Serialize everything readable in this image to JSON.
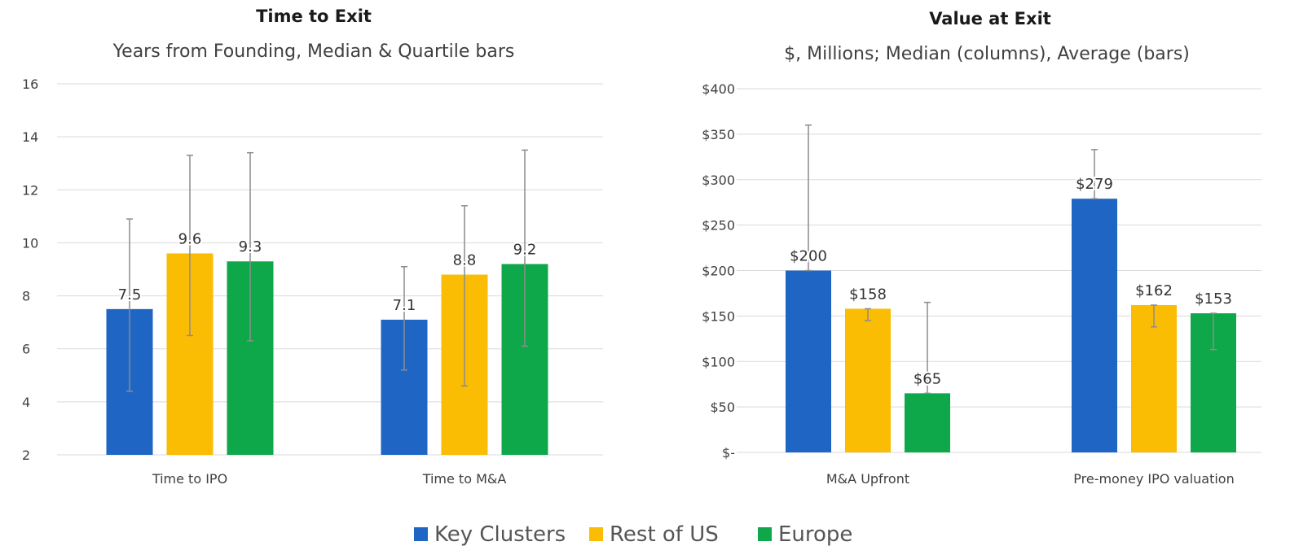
{
  "colors": {
    "key_clusters": "#1f65c4",
    "rest_of_us": "#fbbc04",
    "europe": "#0ea84a",
    "grid": "#d9d9d9",
    "axis_text": "#404040",
    "title_text": "#1a1a1a",
    "error_bar": "#8c8c8c"
  },
  "legend": {
    "position": "bottom-center",
    "items": [
      {
        "label": "Key Clusters",
        "color": "#1f65c4"
      },
      {
        "label": "Rest of US",
        "color": "#fbbc04"
      },
      {
        "label": "Europe",
        "color": "#0ea84a"
      }
    ]
  },
  "chart_data": [
    {
      "type": "bar",
      "title": "Time to Exit",
      "subtitle": "Years from Founding, Median & Quartile bars",
      "xlabel": "",
      "ylabel": "",
      "ylim": [
        2,
        16
      ],
      "yticks": [
        2,
        4,
        6,
        8,
        10,
        12,
        14,
        16
      ],
      "ytick_labels": [
        "2",
        "4",
        "6",
        "8",
        "10",
        "12",
        "14",
        "16"
      ],
      "grid": true,
      "categories": [
        "Time to IPO",
        "Time to M&A"
      ],
      "series": [
        {
          "name": "Key Clusters",
          "color": "#1f65c4",
          "values": [
            7.5,
            7.1
          ],
          "labels": [
            "7.5",
            "7.1"
          ],
          "err_low": [
            4.4,
            5.2
          ],
          "err_high": [
            10.9,
            9.1
          ]
        },
        {
          "name": "Rest of US",
          "color": "#fbbc04",
          "values": [
            9.6,
            8.8
          ],
          "labels": [
            "9.6",
            "8.8"
          ],
          "err_low": [
            6.5,
            4.6
          ],
          "err_high": [
            13.3,
            11.4
          ]
        },
        {
          "name": "Europe",
          "color": "#0ea84a",
          "values": [
            9.3,
            9.2
          ],
          "labels": [
            "9.3",
            "9.2"
          ],
          "err_low": [
            6.3,
            6.1
          ],
          "err_high": [
            13.4,
            13.5
          ]
        }
      ]
    },
    {
      "type": "bar",
      "title": "Value at Exit",
      "subtitle": "$, Millions; Median (columns), Average (bars)",
      "xlabel": "",
      "ylabel": "",
      "ylim": [
        0,
        400
      ],
      "yticks": [
        0,
        50,
        100,
        150,
        200,
        250,
        300,
        350,
        400
      ],
      "ytick_labels": [
        "$-",
        "$50",
        "$100",
        "$150",
        "$200",
        "$250",
        "$300",
        "$350",
        "$400"
      ],
      "grid": true,
      "categories": [
        "M&A Upfront",
        "Pre-money IPO valuation"
      ],
      "series": [
        {
          "name": "Key Clusters",
          "color": "#1f65c4",
          "values": [
            200,
            279
          ],
          "labels": [
            "$200",
            "$279"
          ],
          "err_low": [
            200,
            279
          ],
          "err_high": [
            360,
            333
          ]
        },
        {
          "name": "Rest of US",
          "color": "#fbbc04",
          "values": [
            158,
            162
          ],
          "labels": [
            "$158",
            "$162"
          ],
          "err_low": [
            145,
            138
          ],
          "err_high": [
            158,
            162
          ]
        },
        {
          "name": "Europe",
          "color": "#0ea84a",
          "values": [
            65,
            153
          ],
          "labels": [
            "$65",
            "$153"
          ],
          "err_low": [
            65,
            113
          ],
          "err_high": [
            165,
            153
          ]
        }
      ]
    }
  ]
}
